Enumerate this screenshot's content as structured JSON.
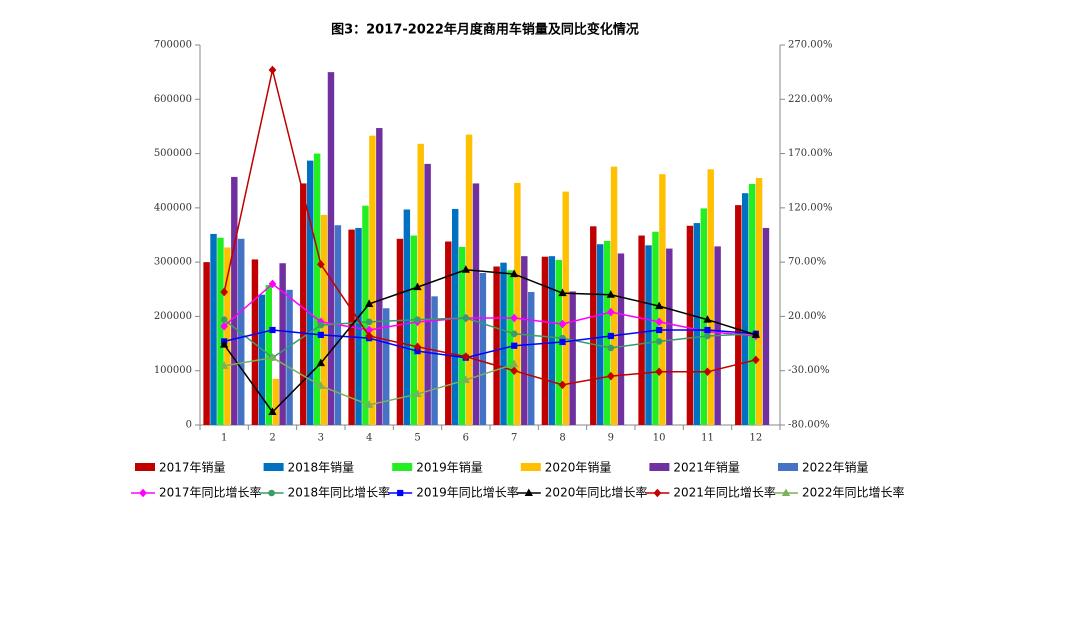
{
  "chart_data": {
    "type": "bar",
    "title": "图3：2017-2022年月度商用车销量及同比变化情况",
    "categories": [
      "1",
      "2",
      "3",
      "4",
      "5",
      "6",
      "7",
      "8",
      "9",
      "10",
      "11",
      "12"
    ],
    "ylim": [
      0,
      700000
    ],
    "yticks": [
      0,
      100000,
      200000,
      300000,
      400000,
      500000,
      600000,
      700000
    ],
    "y2lim": [
      -80,
      270
    ],
    "y2ticks": [
      {
        "value": -80,
        "label": "-80.00%"
      },
      {
        "value": -30,
        "label": "-30.00%"
      },
      {
        "value": 20,
        "label": "20.00%"
      },
      {
        "value": 70,
        "label": "70.00%"
      },
      {
        "value": 120,
        "label": "120.00%"
      },
      {
        "value": 170,
        "label": "170.00%"
      },
      {
        "value": 220,
        "label": "220.00%"
      },
      {
        "value": 270,
        "label": "270.00%"
      }
    ],
    "grid": false,
    "series": [
      {
        "name": "2017年销量",
        "type": "bar",
        "color": "#c00000",
        "values": [
          300000,
          305000,
          445000,
          360000,
          343000,
          338000,
          292000,
          310000,
          366000,
          349000,
          367000,
          405000
        ]
      },
      {
        "name": "2018年销量",
        "type": "bar",
        "color": "#0070c0",
        "values": [
          352000,
          240000,
          487000,
          363000,
          397000,
          398000,
          299000,
          311000,
          333000,
          331000,
          372000,
          427000
        ]
      },
      {
        "name": "2019年销量",
        "type": "bar",
        "color": "#22ee22",
        "values": [
          345000,
          258000,
          500000,
          404000,
          349000,
          328000,
          285000,
          304000,
          339000,
          356000,
          399000,
          444000
        ]
      },
      {
        "name": "2020年销量",
        "type": "bar",
        "color": "#ffc000",
        "values": [
          327000,
          85000,
          387000,
          533000,
          518000,
          535000,
          446000,
          430000,
          476000,
          462000,
          471000,
          455000
        ]
      },
      {
        "name": "2021年销量",
        "type": "bar",
        "color": "#7030a0",
        "values": [
          457000,
          298000,
          650000,
          547000,
          481000,
          445000,
          311000,
          246000,
          316000,
          325000,
          329000,
          363000
        ]
      },
      {
        "name": "2022年销量",
        "type": "bar",
        "color": "#4472c4",
        "values": [
          343000,
          249000,
          368000,
          215000,
          237000,
          280000,
          245000,
          null,
          null,
          null,
          null,
          null
        ]
      },
      {
        "name": "2017年同比增长率",
        "type": "line",
        "axis": "y2",
        "color": "#ff00ff",
        "marker": "diamond",
        "values": [
          11,
          50,
          15,
          7.5,
          15,
          18.5,
          18.5,
          13,
          24,
          15,
          6,
          2
        ]
      },
      {
        "name": "2018年同比增长率",
        "type": "line",
        "axis": "y2",
        "color": "#3c9a6c",
        "marker": "circle",
        "values": [
          17,
          -18,
          12,
          15,
          17,
          18.5,
          4,
          0,
          -9,
          -3,
          2,
          4
        ]
      },
      {
        "name": "2019年同比增长率",
        "type": "line",
        "axis": "y2",
        "color": "#0000ff",
        "marker": "square",
        "values": [
          -3,
          7.5,
          3,
          0,
          -12,
          -18,
          -7,
          -3.5,
          2,
          7.5,
          7.5,
          4
        ]
      },
      {
        "name": "2020年同比增长率",
        "type": "line",
        "axis": "y2",
        "color": "#000000",
        "marker": "triangle",
        "values": [
          -6,
          -68,
          -23,
          31.5,
          47,
          63,
          59,
          41.5,
          40,
          29.5,
          17,
          3
        ]
      },
      {
        "name": "2021年同比增长率",
        "type": "line",
        "axis": "y2",
        "color": "#c00000",
        "marker": "diamond",
        "values": [
          42.5,
          247,
          68,
          2,
          -8,
          -17,
          -30,
          -43,
          -35,
          -31,
          -31,
          -20
        ]
      },
      {
        "name": "2022年同比增长率",
        "type": "line",
        "axis": "y2",
        "color": "#7cb15c",
        "marker": "triangle",
        "values": [
          -25.5,
          -18,
          -44,
          -61.5,
          -51.5,
          -38.5,
          -24,
          null,
          null,
          null,
          null,
          null
        ]
      }
    ]
  }
}
